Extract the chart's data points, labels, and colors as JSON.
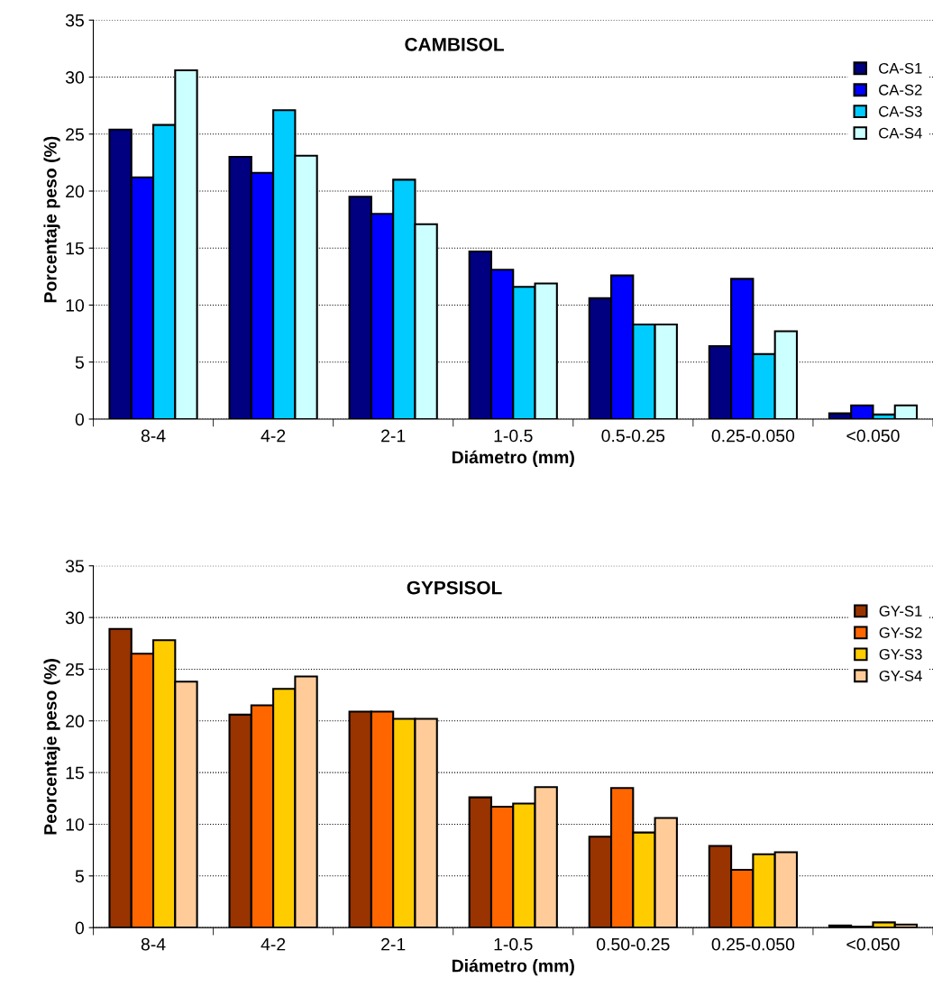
{
  "chart_data": [
    {
      "type": "bar",
      "title": "CAMBISOL",
      "xlabel": "Diámetro (mm)",
      "ylabel": "Porcentaje peso (%)",
      "categories": [
        "8-4",
        "4-2",
        "2-1",
        "1-0.5",
        "0.5-0.25",
        "0.25-0.050",
        "<0.050"
      ],
      "series": [
        {
          "name": "CA-S1",
          "color": "#000080",
          "values": [
            25.4,
            23.0,
            19.5,
            14.7,
            10.6,
            6.4,
            0.5
          ]
        },
        {
          "name": "CA-S2",
          "color": "#0000ff",
          "values": [
            21.2,
            21.6,
            18.0,
            13.1,
            12.6,
            12.3,
            1.2
          ]
        },
        {
          "name": "CA-S3",
          "color": "#00ccff",
          "values": [
            25.8,
            27.1,
            21.0,
            11.6,
            8.3,
            5.7,
            0.4
          ]
        },
        {
          "name": "CA-S4",
          "color": "#ccffff",
          "values": [
            30.6,
            23.1,
            17.1,
            11.9,
            8.3,
            7.7,
            1.2
          ]
        }
      ],
      "ylim": [
        0,
        35
      ],
      "yticks": [
        0,
        5,
        10,
        15,
        20,
        25,
        30,
        35
      ],
      "grid": "y",
      "legend": "top right"
    },
    {
      "type": "bar",
      "title": "GYPSISOL",
      "xlabel": "Diámetro (mm)",
      "ylabel": "Peorcentaje peso (%)",
      "categories": [
        "8-4",
        "4-2",
        "2-1",
        "1-0.5",
        "0.50-0.25",
        "0.25-0.050",
        "<0.050"
      ],
      "series": [
        {
          "name": "GY-S1",
          "color": "#993300",
          "values": [
            28.9,
            20.6,
            20.9,
            12.6,
            8.8,
            7.9,
            0.2
          ]
        },
        {
          "name": "GY-S2",
          "color": "#ff6600",
          "values": [
            26.5,
            21.5,
            20.9,
            11.7,
            13.5,
            5.6,
            0.1
          ]
        },
        {
          "name": "GY-S3",
          "color": "#ffcc00",
          "values": [
            27.8,
            23.1,
            20.2,
            12.0,
            9.2,
            7.1,
            0.5
          ]
        },
        {
          "name": "GY-S4",
          "color": "#ffcc99",
          "values": [
            23.8,
            24.3,
            20.2,
            13.6,
            10.6,
            7.3,
            0.3
          ]
        }
      ],
      "ylim": [
        0,
        35
      ],
      "yticks": [
        0,
        5,
        10,
        15,
        20,
        25,
        30,
        35
      ],
      "grid": "y",
      "legend": "top right"
    }
  ]
}
